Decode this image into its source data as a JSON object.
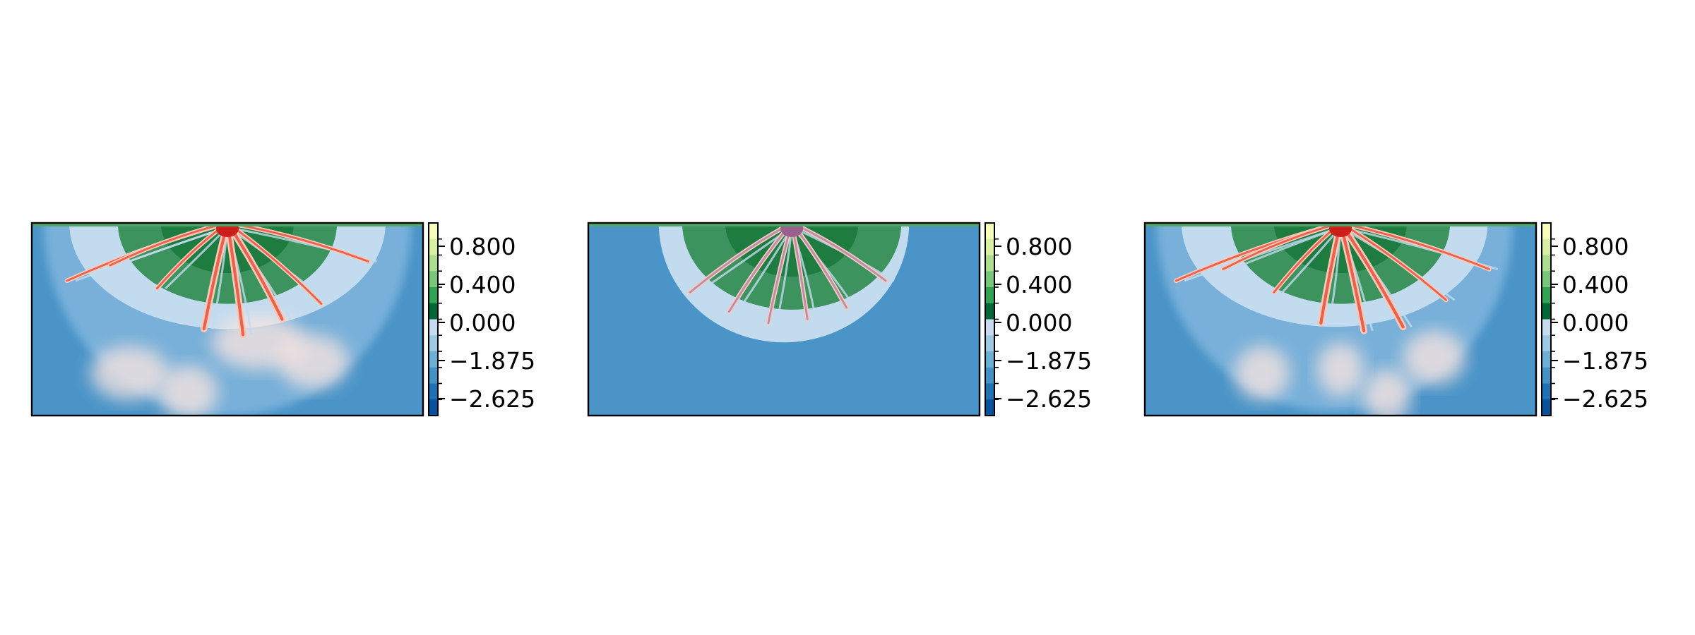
{
  "chart_data": [
    {
      "type": "heatmap",
      "title": "",
      "xlabel": "",
      "ylabel": "",
      "deposit_shape": "fan",
      "deposit_extent": {
        "x": [
          0.03,
          0.97
        ],
        "y": [
          0.0,
          1.0
        ]
      },
      "channel_network": {
        "apex_x": 0.5,
        "green_zone_depth": 0.42,
        "branches": [
          {
            "end_x": 0.09,
            "end_y": 0.3,
            "weight": 2
          },
          {
            "end_x": 0.2,
            "end_y": 0.22,
            "weight": 2
          },
          {
            "end_x": 0.32,
            "end_y": 0.34,
            "weight": 2
          },
          {
            "end_x": 0.44,
            "end_y": 0.55,
            "weight": 3
          },
          {
            "end_x": 0.54,
            "end_y": 0.58,
            "weight": 3
          },
          {
            "end_x": 0.64,
            "end_y": 0.5,
            "weight": 3
          },
          {
            "end_x": 0.74,
            "end_y": 0.42,
            "weight": 2
          },
          {
            "end_x": 0.86,
            "end_y": 0.2,
            "weight": 2
          }
        ],
        "plumes": [
          {
            "x": 0.25,
            "y": 0.78,
            "w": 0.2
          },
          {
            "x": 0.58,
            "y": 0.62,
            "w": 0.24
          },
          {
            "x": 0.72,
            "y": 0.72,
            "w": 0.18
          },
          {
            "x": 0.4,
            "y": 0.88,
            "w": 0.15
          }
        ]
      },
      "colorbar": {
        "ticks": [
          "0.800",
          "0.400",
          "0.000",
          "−1.875",
          "−2.625"
        ],
        "colors": [
          "#f7fcb9",
          "#d9f0a3",
          "#addd8e",
          "#78c679",
          "#31a354",
          "#006837",
          "#c6dbef",
          "#9ecae1",
          "#6baed6",
          "#4292c6",
          "#2171b5",
          "#08519c"
        ],
        "range": [
          -3.0,
          1.0
        ]
      }
    },
    {
      "type": "heatmap",
      "title": "",
      "xlabel": "",
      "ylabel": "",
      "deposit_shape": "lobe",
      "deposit_extent": {
        "x": [
          0.18,
          0.82
        ],
        "y": [
          0.0,
          0.62
        ]
      },
      "channel_network": {
        "apex_x": 0.52,
        "green_zone_depth": 0.45,
        "branches": [
          {
            "end_x": 0.26,
            "end_y": 0.36,
            "weight": 2
          },
          {
            "end_x": 0.36,
            "end_y": 0.46,
            "weight": 2
          },
          {
            "end_x": 0.46,
            "end_y": 0.52,
            "weight": 2
          },
          {
            "end_x": 0.56,
            "end_y": 0.5,
            "weight": 2
          },
          {
            "end_x": 0.66,
            "end_y": 0.44,
            "weight": 2
          },
          {
            "end_x": 0.76,
            "end_y": 0.3,
            "weight": 2
          }
        ],
        "plumes": []
      },
      "colorbar": {
        "ticks": [
          "0.800",
          "0.400",
          "0.000",
          "−1.875",
          "−2.625"
        ],
        "colors": [
          "#f7fcb9",
          "#d9f0a3",
          "#addd8e",
          "#78c679",
          "#31a354",
          "#006837",
          "#c6dbef",
          "#9ecae1",
          "#6baed6",
          "#4292c6",
          "#2171b5",
          "#08519c"
        ],
        "range": [
          -3.0,
          1.0
        ]
      }
    },
    {
      "type": "heatmap",
      "title": "",
      "xlabel": "",
      "ylabel": "",
      "deposit_shape": "fan",
      "deposit_extent": {
        "x": [
          0.03,
          0.94
        ],
        "y": [
          0.0,
          0.98
        ]
      },
      "channel_network": {
        "apex_x": 0.5,
        "green_zone_depth": 0.42,
        "branches": [
          {
            "end_x": 0.08,
            "end_y": 0.3,
            "weight": 2
          },
          {
            "end_x": 0.2,
            "end_y": 0.24,
            "weight": 2
          },
          {
            "end_x": 0.33,
            "end_y": 0.36,
            "weight": 2
          },
          {
            "end_x": 0.45,
            "end_y": 0.52,
            "weight": 3
          },
          {
            "end_x": 0.56,
            "end_y": 0.56,
            "weight": 3
          },
          {
            "end_x": 0.66,
            "end_y": 0.54,
            "weight": 3
          },
          {
            "end_x": 0.77,
            "end_y": 0.4,
            "weight": 2
          },
          {
            "end_x": 0.88,
            "end_y": 0.24,
            "weight": 2
          }
        ],
        "plumes": [
          {
            "x": 0.3,
            "y": 0.78,
            "w": 0.14
          },
          {
            "x": 0.5,
            "y": 0.76,
            "w": 0.12
          },
          {
            "x": 0.74,
            "y": 0.7,
            "w": 0.16
          },
          {
            "x": 0.62,
            "y": 0.9,
            "w": 0.12
          }
        ]
      },
      "colorbar": {
        "ticks": [
          "0.800",
          "0.400",
          "0.000",
          "−1.875",
          "−2.625"
        ],
        "colors": [
          "#f7fcb9",
          "#d9f0a3",
          "#addd8e",
          "#78c679",
          "#31a354",
          "#006837",
          "#c6dbef",
          "#9ecae1",
          "#6baed6",
          "#4292c6",
          "#2171b5",
          "#08519c"
        ],
        "range": [
          -3.0,
          1.0
        ]
      }
    }
  ]
}
